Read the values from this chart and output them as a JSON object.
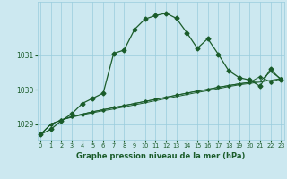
{
  "title": "Graphe pression niveau de la mer (hPa)",
  "bg_color": "#cce8f0",
  "grid_color": "#99ccdd",
  "line_color": "#1a5c2a",
  "x_min": 0,
  "x_max": 23,
  "y_min": 1028.55,
  "y_max": 1032.55,
  "yticks": [
    1029,
    1030,
    1031
  ],
  "xticks": [
    0,
    1,
    2,
    3,
    4,
    5,
    6,
    7,
    8,
    9,
    10,
    11,
    12,
    13,
    14,
    15,
    16,
    17,
    18,
    19,
    20,
    21,
    22,
    23
  ],
  "s1": [
    1028.7,
    1028.85,
    1029.1,
    1029.3,
    1029.6,
    1029.75,
    1029.9,
    1031.05,
    1031.15,
    1031.75,
    1032.05,
    1032.15,
    1032.22,
    1032.07,
    1031.65,
    1031.2,
    1031.48,
    1031.03,
    1030.55,
    1030.35,
    1030.28,
    1030.1,
    1030.6,
    1030.28
  ],
  "s2": [
    1028.7,
    1029.0,
    1029.12,
    1029.2,
    1029.27,
    1029.33,
    1029.39,
    1029.44,
    1029.5,
    1029.56,
    1029.62,
    1029.68,
    1029.74,
    1029.8,
    1029.86,
    1029.92,
    1029.97,
    1030.03,
    1030.09,
    1030.14,
    1030.18,
    1030.22,
    1030.27,
    1030.32
  ],
  "s3": [
    1028.7,
    1029.0,
    1029.12,
    1029.22,
    1029.29,
    1029.36,
    1029.42,
    1029.48,
    1029.54,
    1029.6,
    1029.66,
    1029.72,
    1029.78,
    1029.84,
    1029.9,
    1029.96,
    1030.01,
    1030.07,
    1030.12,
    1030.17,
    1030.21,
    1030.25,
    1030.52,
    1030.32
  ],
  "s4": [
    1028.7,
    1029.0,
    1029.12,
    1029.22,
    1029.29,
    1029.36,
    1029.42,
    1029.48,
    1029.54,
    1029.6,
    1029.66,
    1029.72,
    1029.78,
    1029.84,
    1029.9,
    1029.96,
    1030.01,
    1030.07,
    1030.12,
    1030.17,
    1030.21,
    1030.38,
    1030.22,
    1030.32
  ]
}
